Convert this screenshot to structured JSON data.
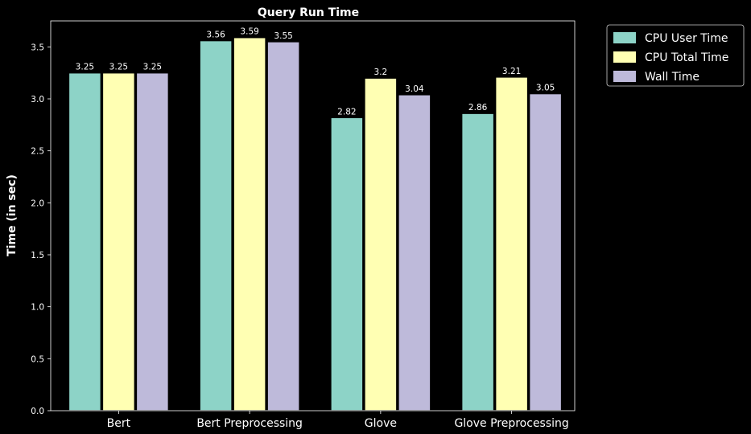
{
  "chart_data": {
    "type": "bar",
    "title": "Query Run Time",
    "xlabel": "",
    "ylabel": "Time (in sec)",
    "categories": [
      "Bert",
      "Bert Preprocessing",
      "Glove",
      "Glove Preprocessing"
    ],
    "series": [
      {
        "name": "CPU User Time",
        "color": "#8dd3c7",
        "values": [
          3.25,
          3.56,
          2.82,
          2.86
        ]
      },
      {
        "name": "CPU Total Time",
        "color": "#ffffb3",
        "values": [
          3.25,
          3.59,
          3.2,
          3.21
        ]
      },
      {
        "name": "Wall Time",
        "color": "#bebada",
        "values": [
          3.25,
          3.55,
          3.04,
          3.05
        ]
      }
    ],
    "ylim": [
      0,
      3.75
    ],
    "yticks": [
      0.0,
      0.5,
      1.0,
      1.5,
      2.0,
      2.5,
      3.0,
      3.5
    ],
    "ytick_labels": [
      "0.0",
      "0.5",
      "1.0",
      "1.5",
      "2.0",
      "2.5",
      "3.0",
      "3.5"
    ],
    "value_labels": [
      [
        "3.25",
        "3.56",
        "2.82",
        "2.86"
      ],
      [
        "3.25",
        "3.59",
        "3.2",
        "3.21"
      ],
      [
        "3.25",
        "3.55",
        "3.04",
        "3.05"
      ]
    ],
    "grid": false,
    "legend_position": "outside-top-right",
    "background": "#000000",
    "foreground": "#ffffff"
  }
}
